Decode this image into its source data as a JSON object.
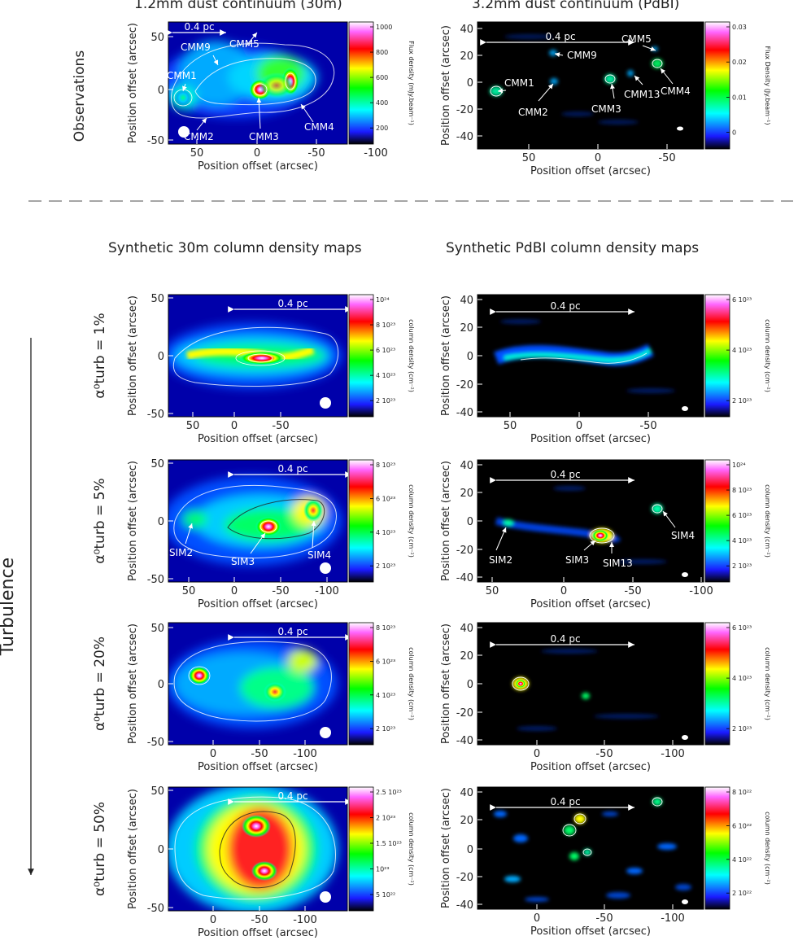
{
  "titles": {
    "obs_30m": "1.2mm dust continuum (30m)",
    "obs_pdbi": "3.2mm dust continuum (PdBI)",
    "syn_30m": "Synthetic 30m column density maps",
    "syn_pdbi": "Synthetic PdBI column density maps"
  },
  "rows": {
    "observations": "Observations",
    "turb1": "α⁰turb = 1%",
    "turb5": "α⁰turb = 5%",
    "turb20": "α⁰turb = 20%",
    "turb50": "α⁰turb = 50%"
  },
  "turbulence_label": "Turbulence",
  "axis": {
    "x_label": "Position offset (arcsec)",
    "y_label": "Position offset (arcsec)"
  },
  "scalebar": "0.4 pc",
  "panels": [
    {
      "id": "p_obs30",
      "xticks": [
        "50",
        "0",
        "-50",
        "-100"
      ],
      "yticks": [
        "50",
        "0",
        "-50"
      ],
      "cbar_unit": "Flux density (mJy.beam⁻¹)",
      "cbar_ticks": [
        "1000",
        "800",
        "600",
        "400",
        "200"
      ],
      "labels": [
        "CMM1",
        "CMM9",
        "CMM5",
        "CMM2",
        "CMM3",
        "CMM4"
      ]
    },
    {
      "id": "p_obspdbi",
      "xticks": [
        "50",
        "0",
        "-50"
      ],
      "yticks": [
        "40",
        "20",
        "0",
        "-20",
        "-40"
      ],
      "cbar_unit": "Flux Density (Jy.beam⁻¹)",
      "cbar_ticks": [
        "0.03",
        "0.02",
        "0.01",
        "0"
      ],
      "labels": [
        "CMM5",
        "CMM9",
        "CMM1",
        "CMM2",
        "CMM3",
        "CMM13",
        "CMM4"
      ]
    },
    {
      "id": "p_s30_1",
      "xticks": [
        "50",
        "0",
        "-50"
      ],
      "yticks": [
        "50",
        "0",
        "-50"
      ],
      "cbar_unit": "column density (cm⁻²)",
      "cbar_ticks": [
        "10²⁴",
        "8 10²³",
        "6 10²³",
        "4 10²³",
        "2 10²³"
      ],
      "labels": []
    },
    {
      "id": "p_sp_1",
      "xticks": [
        "50",
        "0",
        "-50"
      ],
      "yticks": [
        "40",
        "20",
        "0",
        "-20",
        "-40"
      ],
      "cbar_unit": "column density (cm⁻²)",
      "cbar_ticks": [
        "6 10²³",
        "4 10²³",
        "2 10²³"
      ],
      "labels": []
    },
    {
      "id": "p_s30_5",
      "xticks": [
        "50",
        "0",
        "-50",
        "-100"
      ],
      "yticks": [
        "50",
        "0",
        "-50"
      ],
      "cbar_unit": "column density (cm⁻²)",
      "cbar_ticks": [
        "8 10²³",
        "6 10²³",
        "4 10²³",
        "2 10²³"
      ],
      "labels": [
        "SIM2",
        "SIM3",
        "SIM4"
      ]
    },
    {
      "id": "p_sp_5",
      "xticks": [
        "50",
        "0",
        "-50",
        "-100"
      ],
      "yticks": [
        "40",
        "20",
        "0",
        "-20",
        "-40"
      ],
      "cbar_unit": "column density (cm⁻²)",
      "cbar_ticks": [
        "10²⁴",
        "8 10²³",
        "6 10²³",
        "4 10²³",
        "2 10²³"
      ],
      "labels": [
        "SIM4",
        "SIM2",
        "SIM3",
        "SIM13"
      ]
    },
    {
      "id": "p_s30_20",
      "xticks": [
        "0",
        "-50",
        "-100"
      ],
      "yticks": [
        "50",
        "0",
        "-50"
      ],
      "cbar_unit": "column density (cm⁻²)",
      "cbar_ticks": [
        "8 10²³",
        "6 10²³",
        "4 10²³",
        "2 10²³"
      ],
      "labels": []
    },
    {
      "id": "p_sp_20",
      "xticks": [
        "0",
        "-50",
        "-100"
      ],
      "yticks": [
        "40",
        "20",
        "0",
        "-20",
        "-40"
      ],
      "cbar_unit": "column density (cm⁻²)",
      "cbar_ticks": [
        "6 10²³",
        "4 10²³",
        "2 10²³"
      ],
      "labels": []
    },
    {
      "id": "p_s30_50",
      "xticks": [
        "0",
        "-50",
        "-100"
      ],
      "yticks": [
        "50",
        "0",
        "-50"
      ],
      "cbar_unit": "column density (cm⁻²)",
      "cbar_ticks": [
        "2.5 10²³",
        "2 10²³",
        "1.5 10²³",
        "10²³",
        "5 10²²"
      ],
      "labels": []
    },
    {
      "id": "p_sp_50",
      "xticks": [
        "0",
        "-50",
        "-100"
      ],
      "yticks": [
        "40",
        "20",
        "0",
        "-20",
        "-40"
      ],
      "cbar_unit": "column density (cm⁻²)",
      "cbar_ticks": [
        "8 10²²",
        "6 10²²",
        "4 10²²",
        "2 10²²"
      ],
      "labels": []
    }
  ]
}
